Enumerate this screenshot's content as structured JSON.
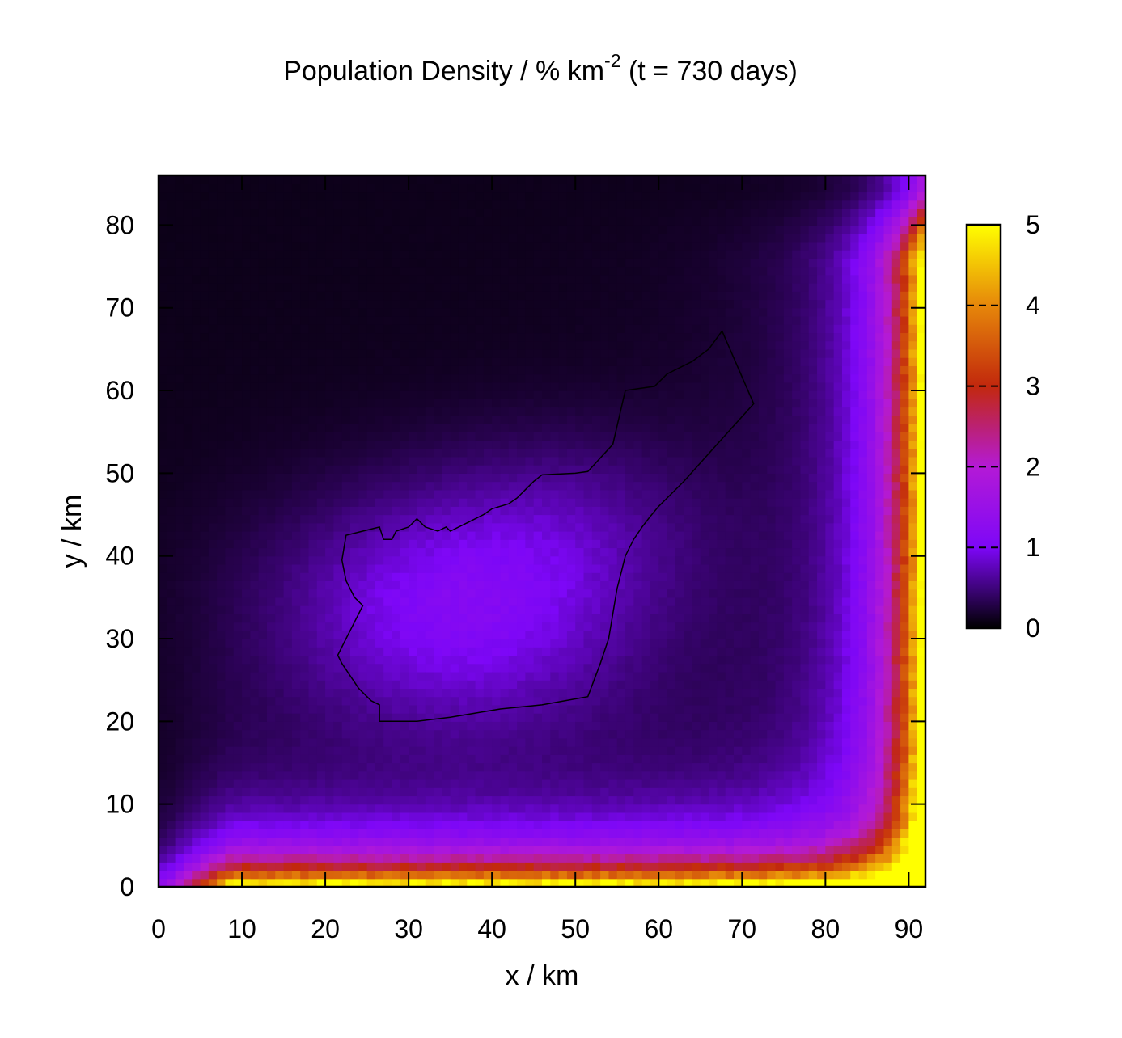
{
  "chart_data": {
    "type": "heatmap",
    "title": {
      "main": "Population Density / % km",
      "superscript": "-2",
      "suffix": " (t = 730 days)"
    },
    "xlabel": "x / km",
    "ylabel": "y / km",
    "xlim": [
      0,
      92
    ],
    "ylim": [
      0,
      86
    ],
    "xticks": [
      0,
      10,
      20,
      30,
      40,
      50,
      60,
      70,
      80,
      90
    ],
    "yticks": [
      0,
      10,
      20,
      30,
      40,
      50,
      60,
      70,
      80
    ],
    "colorbar": {
      "range": [
        0,
        5
      ],
      "ticks": [
        0,
        1,
        2,
        3,
        4,
        5
      ],
      "stops": [
        {
          "value": 0,
          "color": "#000000"
        },
        {
          "value": 1,
          "color": "#7d07f7"
        },
        {
          "value": 2,
          "color": "#b41ad6"
        },
        {
          "value": 3,
          "color": "#c2280d"
        },
        {
          "value": 4,
          "color": "#e6870a"
        },
        {
          "value": 5,
          "color": "#ffff00"
        }
      ]
    },
    "density_model": {
      "background": 0.18,
      "hotspots": [
        {
          "x": 35,
          "y": 34,
          "peak": 1.25,
          "sx": 15,
          "sy": 10
        },
        {
          "x": 50,
          "y": 45,
          "peak": 0.4,
          "sx": 12,
          "sy": 8
        }
      ],
      "bottom_edge": {
        "peak": 4.3,
        "decay_km": 3.0
      },
      "right_edge": {
        "peak": 4.5,
        "decay_km": 3.5
      }
    },
    "boundary": [
      [
        22.5,
        42.5
      ],
      [
        26.5,
        43.5
      ],
      [
        27,
        42
      ],
      [
        28,
        42
      ],
      [
        28.5,
        43
      ],
      [
        30,
        43.5
      ],
      [
        31,
        44.5
      ],
      [
        32,
        43.5
      ],
      [
        33.5,
        43
      ],
      [
        34.5,
        43.5
      ],
      [
        35,
        43
      ],
      [
        37,
        44
      ],
      [
        39,
        45
      ],
      [
        40,
        45.7
      ],
      [
        41,
        46
      ],
      [
        42,
        46.3
      ],
      [
        43,
        47
      ],
      [
        44,
        48
      ],
      [
        45,
        49
      ],
      [
        46,
        49.8
      ],
      [
        50,
        50
      ],
      [
        51.5,
        50.2
      ],
      [
        54.5,
        53.5
      ],
      [
        56,
        60
      ],
      [
        59.5,
        60.5
      ],
      [
        61,
        62
      ],
      [
        64,
        63.5
      ],
      [
        66,
        65
      ],
      [
        67.6,
        67.2
      ],
      [
        71.4,
        58.4
      ],
      [
        67,
        53.5
      ],
      [
        63,
        49
      ],
      [
        61,
        47
      ],
      [
        60,
        46
      ],
      [
        59,
        44.8
      ],
      [
        58,
        43.5
      ],
      [
        57,
        42
      ],
      [
        56,
        40
      ],
      [
        55.5,
        38
      ],
      [
        55,
        36
      ],
      [
        54.5,
        33
      ],
      [
        54,
        30
      ],
      [
        53,
        27
      ],
      [
        51.5,
        23
      ],
      [
        46,
        22
      ],
      [
        41,
        21.5
      ],
      [
        38,
        21
      ],
      [
        35,
        20.5
      ],
      [
        31,
        20
      ],
      [
        26.5,
        20
      ],
      [
        26.5,
        22
      ],
      [
        25.5,
        22.5
      ],
      [
        25,
        23
      ],
      [
        24,
        24
      ],
      [
        23,
        25.5
      ],
      [
        22,
        27
      ],
      [
        21.5,
        28
      ],
      [
        22.5,
        30
      ],
      [
        23,
        31
      ],
      [
        24.5,
        34
      ],
      [
        23.5,
        35
      ],
      [
        22.5,
        37
      ],
      [
        22,
        39.5
      ]
    ]
  }
}
